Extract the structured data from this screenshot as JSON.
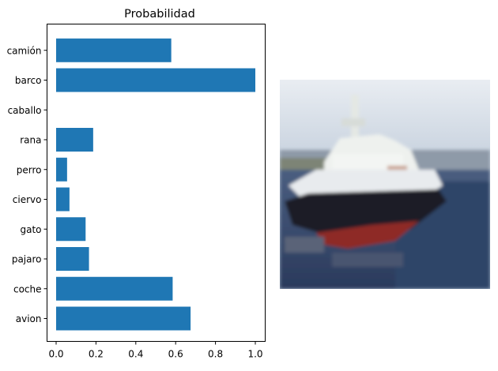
{
  "chart_data": {
    "type": "bar",
    "orientation": "horizontal",
    "title": "Probabilidad",
    "xlabel": "",
    "ylabel": "",
    "categories": [
      "avion",
      "coche",
      "pajaro",
      "gato",
      "ciervo",
      "perro",
      "rana",
      "caballo",
      "barco",
      "camión"
    ],
    "values": [
      0.675,
      0.585,
      0.165,
      0.148,
      0.067,
      0.055,
      0.186,
      0.0,
      1.0,
      0.578
    ],
    "xlim": [
      0,
      1.05
    ],
    "xticks": [
      0.0,
      0.2,
      0.4,
      0.6,
      0.8,
      1.0
    ],
    "xtick_labels": [
      "0.0",
      "0.2",
      "0.4",
      "0.6",
      "0.8",
      "1.0"
    ],
    "bar_color": "#1f77b4",
    "grid": false,
    "legend": "none"
  },
  "side_image": {
    "subject": "low-resolution photo of a ship on water"
  }
}
